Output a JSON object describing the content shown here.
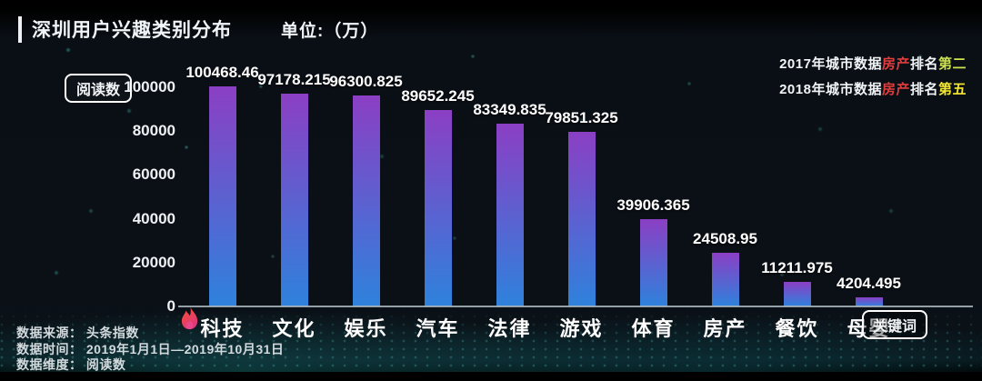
{
  "header": {
    "title": "深圳用户兴趣类别分布",
    "unit_label": "单位:（万）"
  },
  "annotations": [
    {
      "segments": [
        {
          "text": "2017年城市数据",
          "color": "text_primary"
        },
        {
          "text": "房产",
          "color": "highlight_red"
        },
        {
          "text": "排名",
          "color": "text_primary"
        },
        {
          "text": "第二",
          "color": "rank_second"
        }
      ]
    },
    {
      "segments": [
        {
          "text": "2018年城市数据",
          "color": "text_primary"
        },
        {
          "text": "房产",
          "color": "highlight_red"
        },
        {
          "text": "排名",
          "color": "text_primary"
        },
        {
          "text": "第五",
          "color": "rank_fifth"
        }
      ]
    }
  ],
  "chart_data": {
    "type": "bar",
    "title": "深圳用户兴趣类别分布",
    "unit": "万",
    "categories": [
      "科技",
      "文化",
      "娱乐",
      "汽车",
      "法律",
      "游戏",
      "体育",
      "房产",
      "餐饮",
      "母婴"
    ],
    "values": [
      100468.46,
      97178.215,
      96300.825,
      89652.245,
      83349.835,
      79851.325,
      39906.365,
      24508.95,
      11211.975,
      4204.495
    ],
    "value_labels": [
      "100468.46",
      "97178.215",
      "96300.825",
      "89652.245",
      "83349.835",
      "79851.325",
      "39906.365",
      "24508.95",
      "11211.975",
      "4204.495"
    ],
    "ylabel": "阅读数",
    "xlabel": "关键词",
    "ylim": [
      0,
      100000
    ],
    "yticks": [
      0,
      20000,
      40000,
      60000,
      80000,
      100000
    ],
    "legend": [],
    "grid": false,
    "highlight_category": "科技",
    "bar_gradient_top": "#8b3fc4",
    "bar_gradient_bottom": "#2e82dc"
  },
  "colors": {
    "text_primary": "#f2f5f7",
    "highlight_red": "#e23d3d",
    "rank_second": "#cde24e",
    "rank_fifth": "#f6e82e",
    "flame_top": "#f8512e",
    "flame_bottom": "#e0357c"
  },
  "footer": {
    "rows": [
      {
        "label": "数据来源：",
        "value": "头条指数"
      },
      {
        "label": "数据时间：",
        "value": "2019年1月1日—2019年10月31日"
      },
      {
        "label": "数据维度：",
        "value": "阅读数"
      }
    ]
  }
}
